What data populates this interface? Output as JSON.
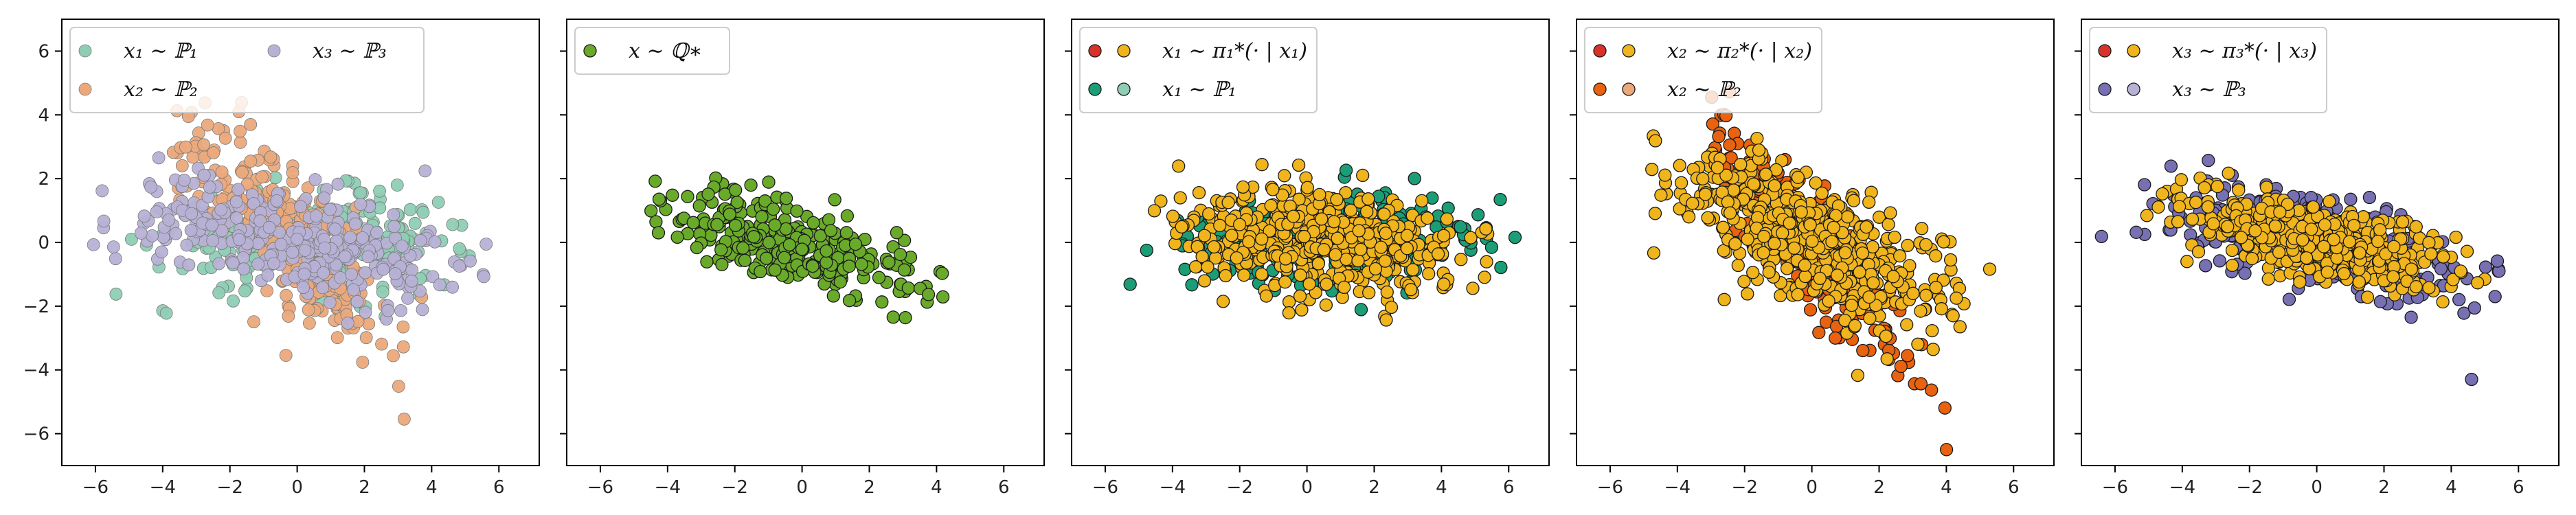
{
  "colors": {
    "p1": "#8fcdb4",
    "p2": "#eba97b",
    "p3": "#b7b1d6",
    "q": "#6aaa2a",
    "orange": "#f0b41c",
    "red": "#d9322b",
    "teal": "#1b9e77",
    "darkorange": "#e8620f",
    "purple": "#7770b3"
  },
  "chart_data": [
    {
      "type": "scatter",
      "xlim": [
        -7,
        7.2
      ],
      "ylim": [
        -7,
        7
      ],
      "xticks": [
        -6,
        -4,
        -2,
        0,
        2,
        4,
        6
      ],
      "yticks": [
        -6,
        -4,
        -2,
        0,
        2,
        4,
        6
      ],
      "legend": {
        "placement": "top-left",
        "columns": 2,
        "entries": [
          {
            "label": "x₁ ∼ ℙ₁",
            "markers": [
              "p1"
            ]
          },
          {
            "label": "x₃ ∼ ℙ₃",
            "markers": [
              "p3"
            ]
          },
          {
            "label": "x₂ ∼ ℙ₂",
            "markers": [
              "p2"
            ]
          }
        ]
      },
      "series": [
        {
          "color": "p1",
          "dist": {
            "n": 260,
            "cx": 0.6,
            "cy": 0.0,
            "sx": 2.3,
            "sy": 0.75,
            "rho": 0.05,
            "xmin": -6.2,
            "xmax": 5.2
          },
          "alpha": 0.95
        },
        {
          "color": "p2",
          "dist": {
            "n": 280,
            "cx": -0.4,
            "cy": 0.2,
            "sx": 1.7,
            "sy": 1.9,
            "rho": -0.82,
            "xmin": -4.0,
            "xmax": 3.9
          },
          "alpha": 0.95
        },
        {
          "color": "p3",
          "dist": {
            "n": 320,
            "cx": 0.0,
            "cy": 0.0,
            "sx": 2.4,
            "sy": 0.9,
            "rho": -0.5,
            "xmin": -6.3,
            "xmax": 5.8
          },
          "alpha": 0.95
        }
      ]
    },
    {
      "type": "scatter",
      "xlim": [
        -7,
        7.2
      ],
      "ylim": [
        -7,
        7
      ],
      "xticks": [
        -6,
        -4,
        -2,
        0,
        2,
        4,
        6
      ],
      "yticks": [
        -6,
        -4,
        -2,
        0,
        2,
        4,
        6
      ],
      "legend": {
        "placement": "top-left",
        "columns": 1,
        "entries": [
          {
            "label": "x ∼ ℚ∗",
            "markers": [
              "q"
            ]
          }
        ]
      },
      "series": [
        {
          "color": "q",
          "dist": {
            "n": 300,
            "cx": -0.2,
            "cy": -0.1,
            "sx": 1.8,
            "sy": 0.85,
            "rho": -0.62,
            "xmin": -4.5,
            "xmax": 5.8
          },
          "alpha": 1.0
        }
      ]
    },
    {
      "type": "scatter",
      "xlim": [
        -7,
        7.2
      ],
      "ylim": [
        -7,
        7
      ],
      "xticks": [
        -6,
        -4,
        -2,
        0,
        2,
        4,
        6
      ],
      "yticks": [
        -6,
        -4,
        -2,
        0,
        2,
        4,
        6
      ],
      "legend": {
        "placement": "top-left",
        "columns": 1,
        "entries": [
          {
            "label": "x₁ ∼ π₁*(· | x₁)",
            "markers": [
              "red",
              "orange"
            ]
          },
          {
            "label": "x₁ ∼ ℙ₁",
            "markers": [
              "teal",
              "p1"
            ]
          }
        ]
      },
      "series": [
        {
          "color": "teal",
          "dist": {
            "n": 260,
            "cx": 0.6,
            "cy": 0.0,
            "sx": 2.3,
            "sy": 0.75,
            "rho": 0.05,
            "xmin": -6.2,
            "xmax": 6.5
          },
          "alpha": 1.0
        },
        {
          "color": "orange",
          "dist": {
            "n": 520,
            "cx": 0.3,
            "cy": 0.1,
            "sx": 2.0,
            "sy": 0.8,
            "rho": -0.25,
            "xmin": -5.9,
            "xmax": 5.5
          },
          "alpha": 1.0
        }
      ]
    },
    {
      "type": "scatter",
      "xlim": [
        -7,
        7.2
      ],
      "ylim": [
        -7,
        7
      ],
      "xticks": [
        -6,
        -4,
        -2,
        0,
        2,
        4,
        6
      ],
      "yticks": [
        -6,
        -4,
        -2,
        0,
        2,
        4,
        6
      ],
      "legend": {
        "placement": "top-left",
        "columns": 1,
        "entries": [
          {
            "label": "x₂ ∼ π₂*(· | x₂)",
            "markers": [
              "red",
              "orange"
            ]
          },
          {
            "label": "x₂ ∼ ℙ₂",
            "markers": [
              "darkorange",
              "p2"
            ]
          }
        ]
      },
      "series": [
        {
          "color": "darkorange",
          "dist": {
            "n": 280,
            "cx": -0.3,
            "cy": 0.1,
            "sx": 1.75,
            "sy": 2.0,
            "rho": -0.88,
            "xmin": -3.0,
            "xmax": 4.3
          },
          "alpha": 1.0
        },
        {
          "color": "orange",
          "dist": {
            "n": 520,
            "cx": -0.1,
            "cy": 0.1,
            "sx": 2.0,
            "sy": 1.3,
            "rho": -0.7,
            "xmin": -4.8,
            "xmax": 5.4
          },
          "alpha": 1.0
        }
      ]
    },
    {
      "type": "scatter",
      "xlim": [
        -7,
        7.2
      ],
      "ylim": [
        -7,
        7
      ],
      "xticks": [
        -6,
        -4,
        -2,
        0,
        2,
        4,
        6
      ],
      "yticks": [
        -6,
        -4,
        -2,
        0,
        2,
        4,
        6
      ],
      "legend": {
        "placement": "top-left",
        "columns": 1,
        "entries": [
          {
            "label": "x₃ ∼ π₃*(· | x₃)",
            "markers": [
              "red",
              "orange"
            ]
          },
          {
            "label": "x₃ ∼ ℙ₃",
            "markers": [
              "purple",
              "p3"
            ]
          }
        ]
      },
      "series": [
        {
          "color": "purple",
          "dist": {
            "n": 320,
            "cx": 0.0,
            "cy": 0.0,
            "sx": 2.4,
            "sy": 0.9,
            "rho": -0.55,
            "xmin": -6.8,
            "xmax": 6.5
          },
          "alpha": 1.0
        },
        {
          "color": "orange",
          "dist": {
            "n": 520,
            "cx": 0.0,
            "cy": 0.1,
            "sx": 1.9,
            "sy": 0.7,
            "rho": -0.55,
            "xmin": -5.4,
            "xmax": 5.6
          },
          "alpha": 1.0
        }
      ]
    }
  ]
}
